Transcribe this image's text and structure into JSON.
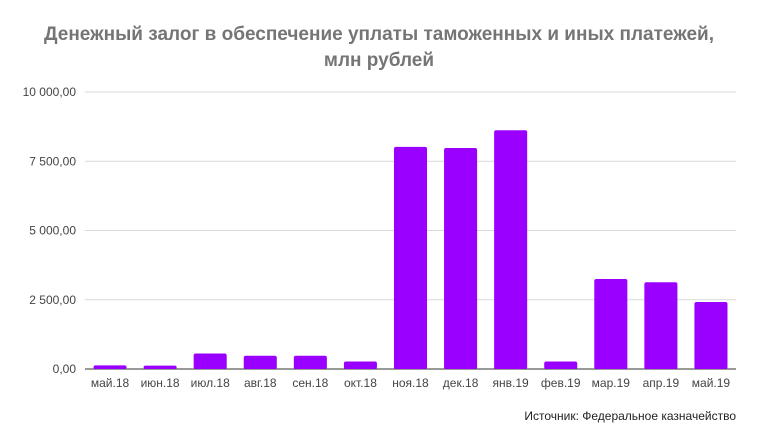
{
  "chart_data": {
    "type": "bar",
    "title_line1": "Денежный залог в обеспечение уплаты таможенных и иных платежей,",
    "title_line2": "млн рублей",
    "categories": [
      "май.18",
      "июн.18",
      "июл.18",
      "авг.18",
      "сен.18",
      "окт.18",
      "ноя.18",
      "дек.18",
      "янв.19",
      "фев.19",
      "мар.19",
      "апр.19",
      "май.19"
    ],
    "values": [
      130,
      120,
      560,
      480,
      480,
      270,
      8020,
      7980,
      8620,
      270,
      3250,
      3130,
      2420
    ],
    "ylim": [
      0,
      10000
    ],
    "yticks": [
      0,
      2500,
      5000,
      7500,
      10000
    ],
    "ytick_labels": [
      "0,00",
      "2 500,00",
      "5 000,00",
      "7 500,00",
      "10 000,00"
    ],
    "bar_color": "#9900ff",
    "grid": true,
    "legend": false,
    "source": "Источник: Федеральное казначейство"
  }
}
